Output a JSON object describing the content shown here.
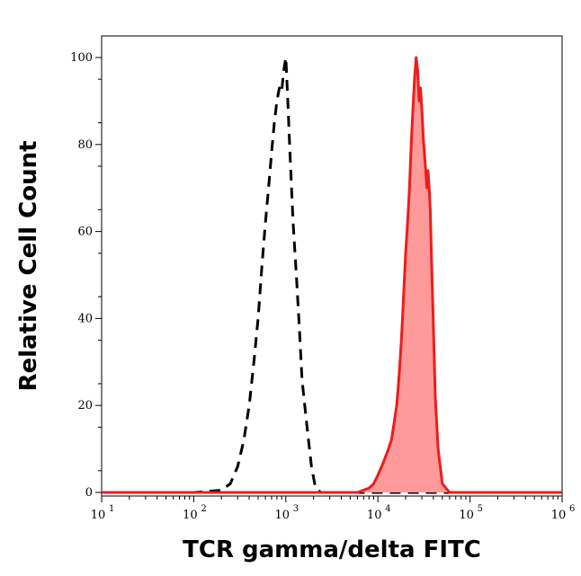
{
  "chart_data": {
    "type": "area",
    "xlabel": "TCR gamma/delta FITC",
    "ylabel": "Relative Cell Count",
    "x_scale": "log",
    "xlim": [
      10,
      1000000
    ],
    "ylim": [
      0,
      100
    ],
    "x_ticks": [
      {
        "base": "10",
        "exp": "1",
        "value": 10
      },
      {
        "base": "10",
        "exp": "2",
        "value": 100
      },
      {
        "base": "10",
        "exp": "3",
        "value": 1000
      },
      {
        "base": "10",
        "exp": "4",
        "value": 10000
      },
      {
        "base": "10",
        "exp": "5",
        "value": 100000
      },
      {
        "base": "10",
        "exp": "6",
        "value": 1000000
      }
    ],
    "y_ticks": [
      "0",
      "20",
      "40",
      "60",
      "80",
      "100"
    ],
    "grid": false,
    "legend": "none",
    "series": [
      {
        "style": "dashed",
        "color": "#000000",
        "filled": false,
        "x": [
          10,
          100,
          200,
          250,
          300,
          350,
          400,
          450,
          500,
          550,
          600,
          650,
          700,
          750,
          800,
          850,
          900,
          950,
          1000,
          1050,
          1100,
          1200,
          1300,
          1400,
          1500,
          1700,
          1900,
          2100,
          2400,
          3000,
          10000,
          1000000
        ],
        "y": [
          0,
          0,
          0.5,
          2,
          6,
          12,
          20,
          30,
          40,
          52,
          62,
          70,
          78,
          85,
          90,
          93,
          92,
          97,
          100,
          90,
          80,
          62,
          50,
          38,
          26,
          15,
          6,
          1,
          0,
          0,
          0,
          0
        ]
      },
      {
        "style": "solid",
        "color": "#ee1c1c",
        "fill": "#ff9a9a",
        "filled": true,
        "x": [
          10,
          6000,
          8000,
          9000,
          10000,
          11000,
          12000,
          13000,
          14000,
          15000,
          16000,
          17000,
          18000,
          19000,
          20000,
          21000,
          22000,
          23000,
          24000,
          25000,
          26000,
          27000,
          28000,
          29000,
          30000,
          31000,
          32000,
          33000,
          34000,
          35000,
          36000,
          37000,
          38000,
          40000,
          42000,
          45000,
          50000,
          60000,
          1000000
        ],
        "y": [
          0,
          0,
          1,
          2,
          4,
          6,
          8,
          10,
          12,
          16,
          20,
          27,
          35,
          45,
          55,
          62,
          70,
          80,
          88,
          95,
          100,
          97,
          90,
          93,
          88,
          82,
          78,
          74,
          70,
          74,
          70,
          65,
          55,
          38,
          22,
          10,
          2,
          0,
          0
        ]
      }
    ]
  }
}
